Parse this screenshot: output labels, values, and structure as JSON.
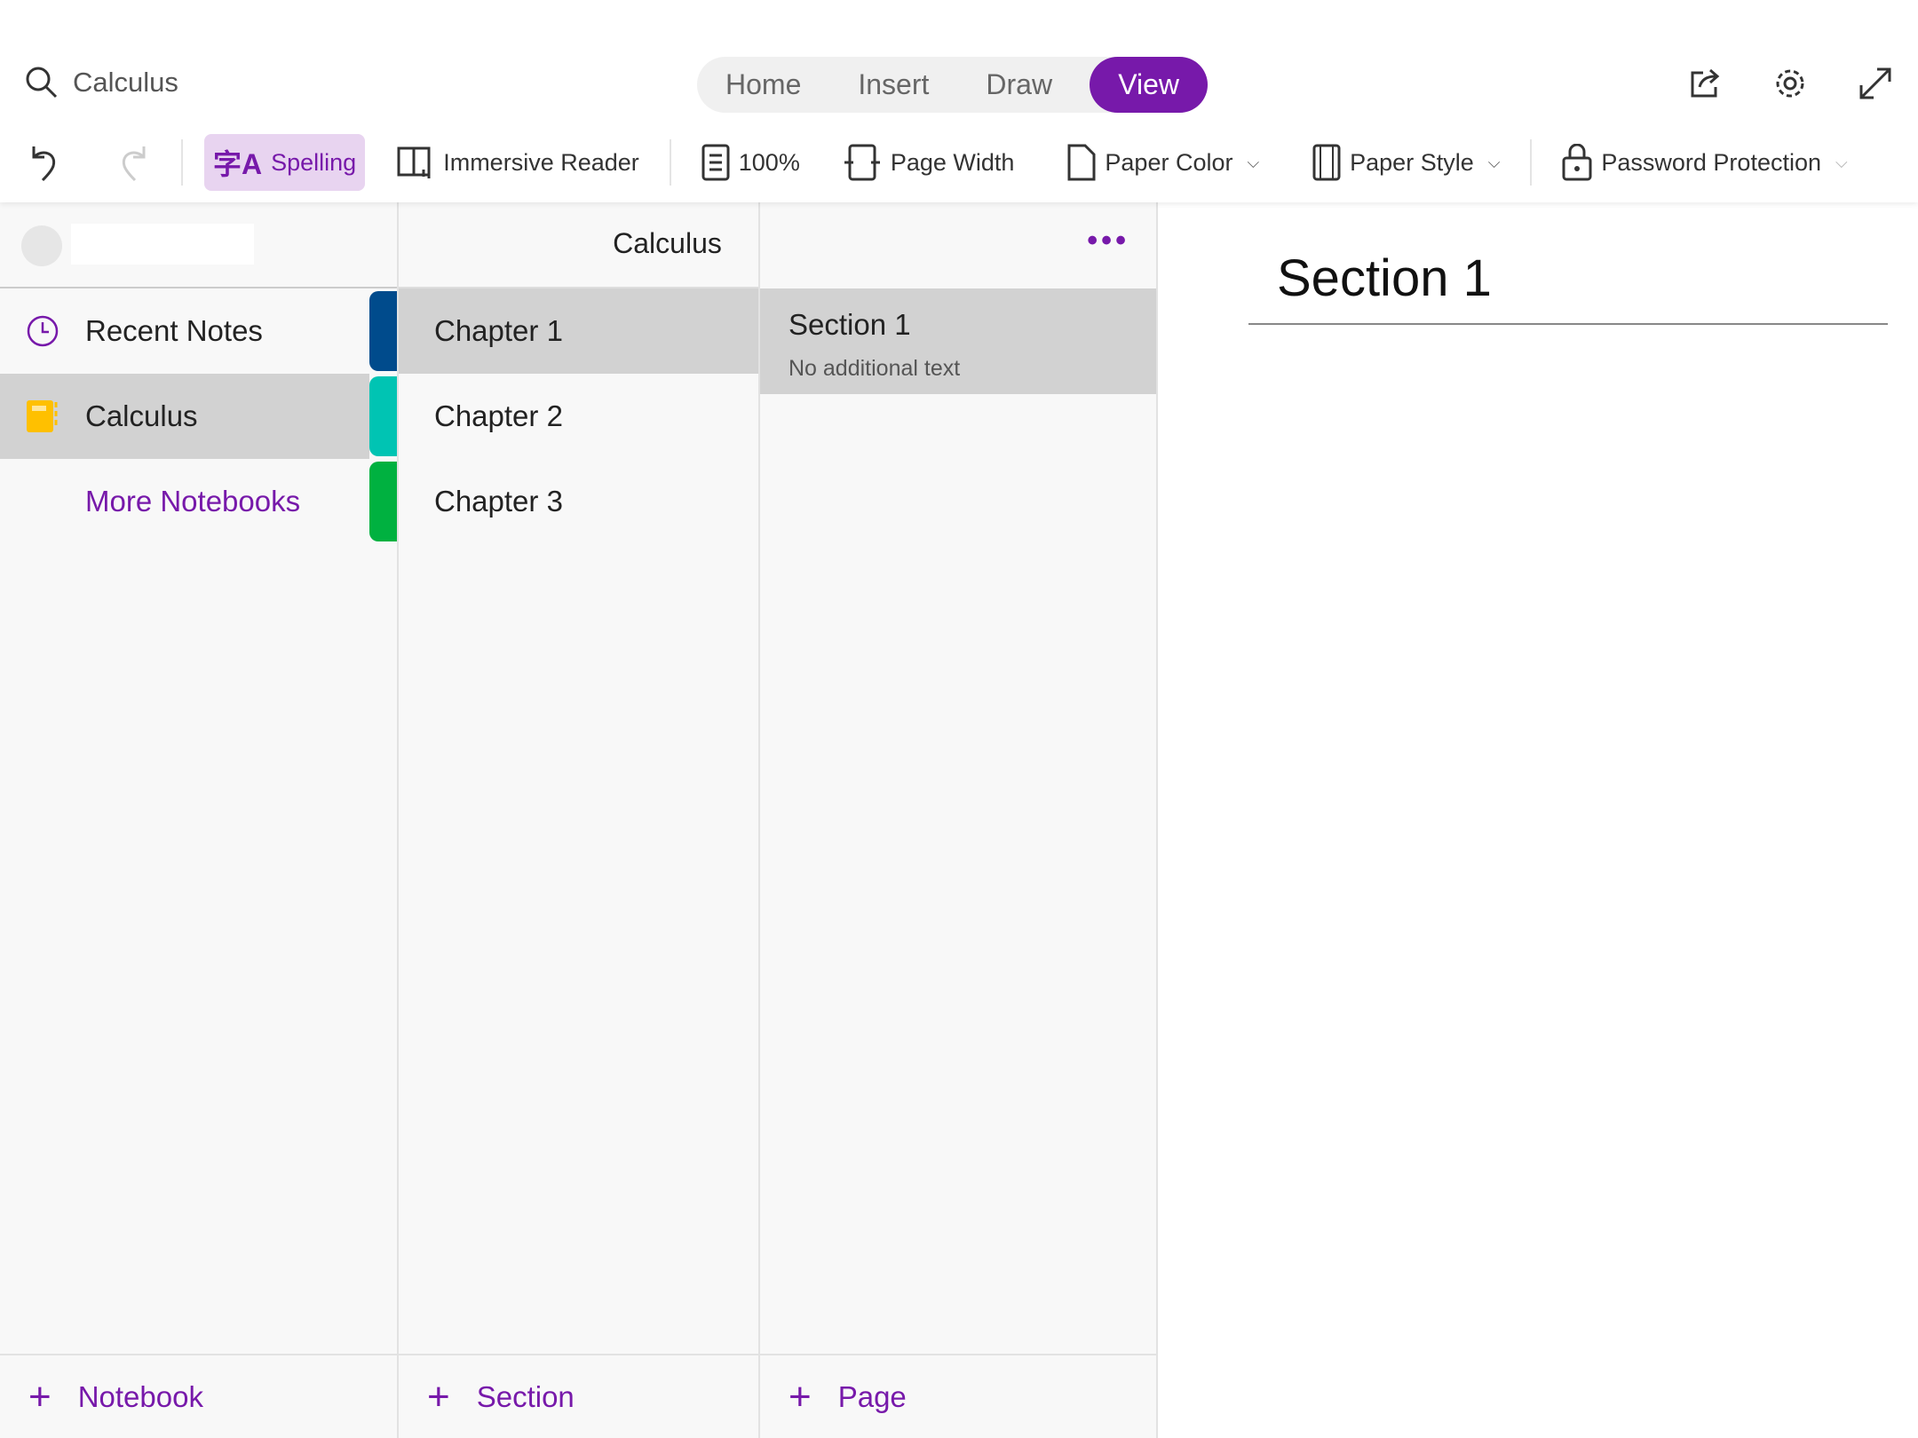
{
  "search": {
    "value": "Calculus",
    "icon": "search-icon"
  },
  "tabs": [
    {
      "label": "Home"
    },
    {
      "label": "Insert"
    },
    {
      "label": "Draw"
    },
    {
      "label": "View",
      "active": true
    }
  ],
  "toolbar": {
    "spelling": "Spelling",
    "immersive_reader": "Immersive Reader",
    "zoom": "100%",
    "page_width": "Page Width",
    "paper_color": "Paper Color",
    "paper_style": "Paper Style",
    "password_protection": "Password Protection"
  },
  "notebooks": {
    "recent": "Recent Notes",
    "current": "Calculus",
    "more": "More Notebooks",
    "add": "Notebook"
  },
  "sections": {
    "title": "Calculus",
    "items": [
      {
        "label": "Chapter 1",
        "color": "#004b8c"
      },
      {
        "label": "Chapter 2",
        "color": "#00c4b3"
      },
      {
        "label": "Chapter 3",
        "color": "#00b140"
      }
    ],
    "add": "Section"
  },
  "pages": {
    "items": [
      {
        "title": "Section 1",
        "preview": "No additional text"
      }
    ],
    "add": "Page"
  },
  "content": {
    "title": "Section 1"
  },
  "colors": {
    "accent": "#7719aa",
    "notebook": "#ffc000"
  }
}
